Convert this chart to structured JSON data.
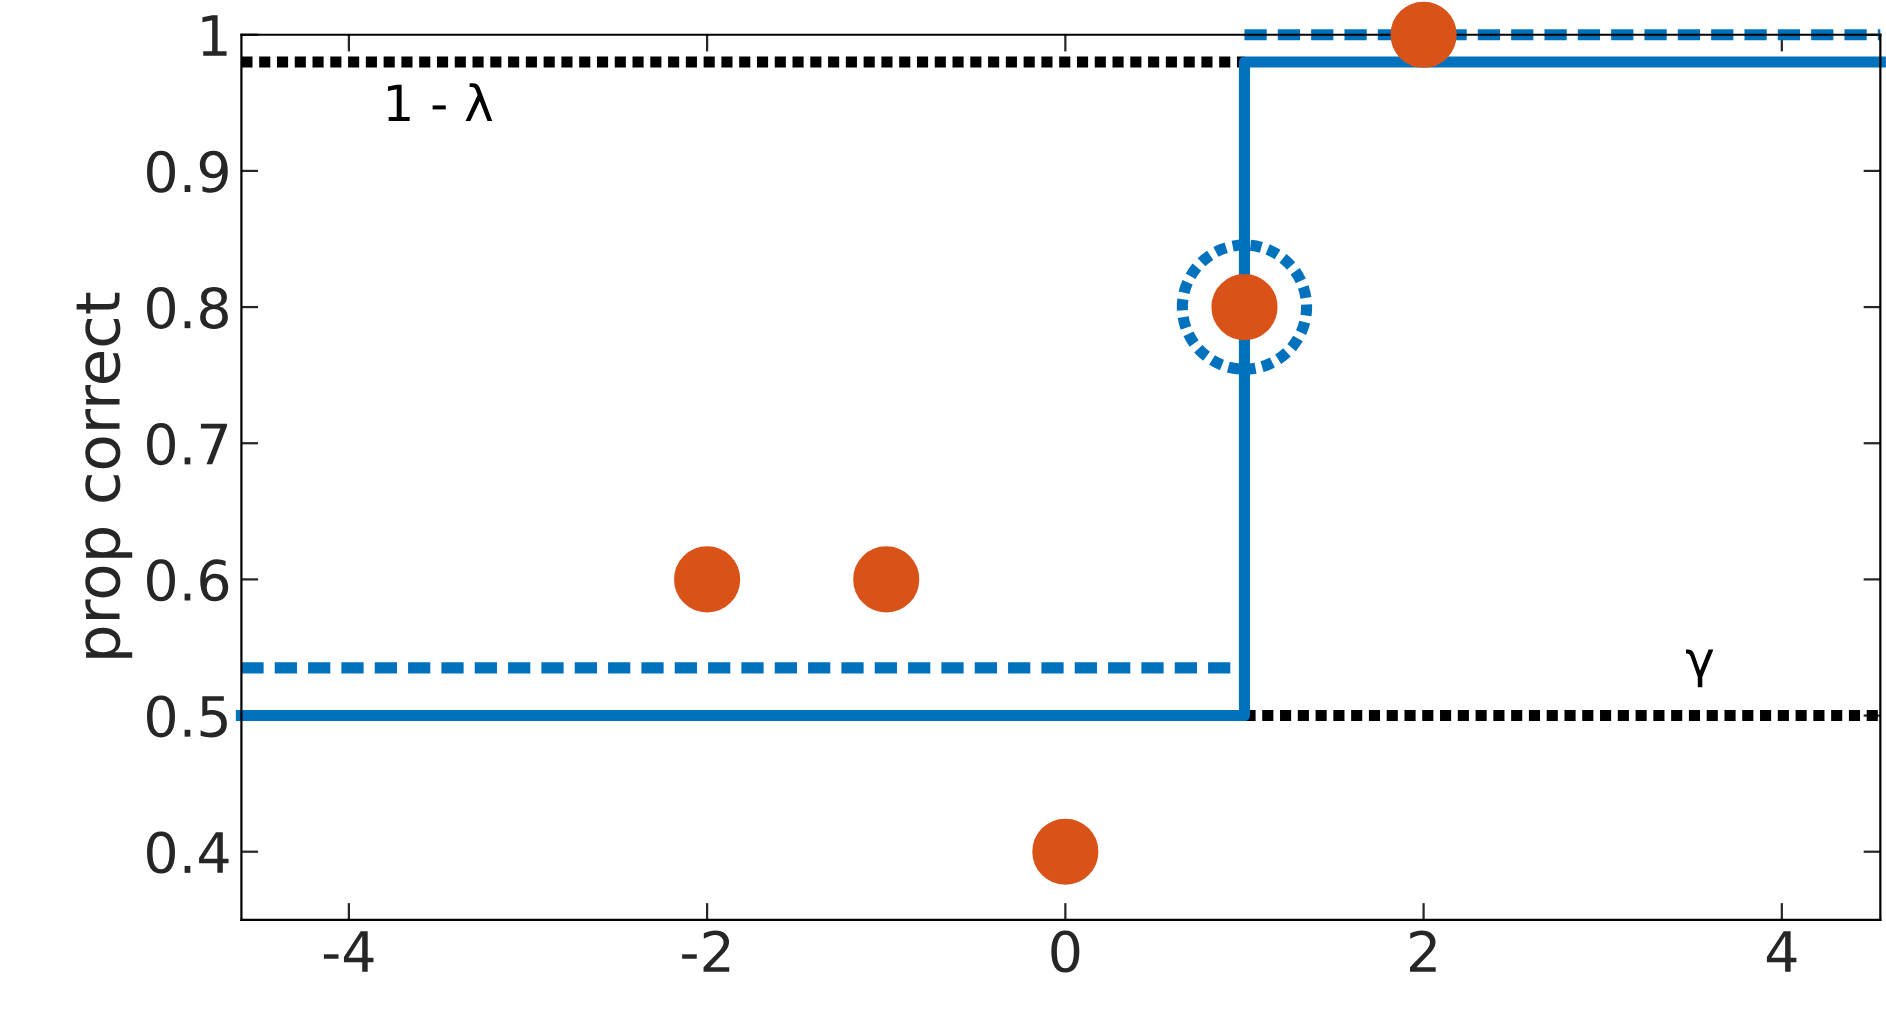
{
  "chart_data": {
    "type": "line",
    "ylabel": "prop correct",
    "xlim": [
      -4.6,
      4.55
    ],
    "ylim": [
      0.35,
      1.0
    ],
    "xticks": [
      -4,
      -2,
      0,
      2,
      4
    ],
    "yticks": [
      0.4,
      0.5,
      0.6,
      0.7,
      0.8,
      0.9,
      {
        "value": 1.0,
        "label": "1"
      }
    ],
    "grid": false,
    "legend": false,
    "series": [
      {
        "color": "#000000",
        "line_style": "dotted",
        "x": [
          -4.6,
          1
        ],
        "values": [
          0.98,
          0.98
        ]
      },
      {
        "color": "#000000",
        "line_style": "dotted",
        "x": [
          1,
          4.55
        ],
        "values": [
          0.5,
          0.5
        ]
      },
      {
        "color": "#0072bd",
        "line_style": "dashed",
        "x": [
          -4.6,
          1
        ],
        "values": [
          0.535,
          0.535
        ]
      },
      {
        "color": "#0072bd",
        "line_style": "dashed",
        "x": [
          1,
          4.55
        ],
        "values": [
          1.0,
          1.0
        ]
      },
      {
        "color": "#0072bd",
        "line_style": "solid",
        "x": [
          -4.6,
          1,
          1,
          4.55
        ],
        "values": [
          0.5,
          0.5,
          0.98,
          0.98
        ]
      },
      {
        "type": "scatter",
        "color": "#0072bd",
        "marker": "circle",
        "line_style": "dotted",
        "x": [
          1
        ],
        "values": [
          0.8
        ]
      },
      {
        "type": "scatter",
        "color": "#d95319",
        "marker": "circle",
        "x": [
          -2,
          -1,
          0,
          1,
          2
        ],
        "values": [
          0.6,
          0.6,
          0.4,
          0.8,
          1.0
        ]
      }
    ],
    "annotations": [
      "1 - λ",
      "γ"
    ]
  }
}
